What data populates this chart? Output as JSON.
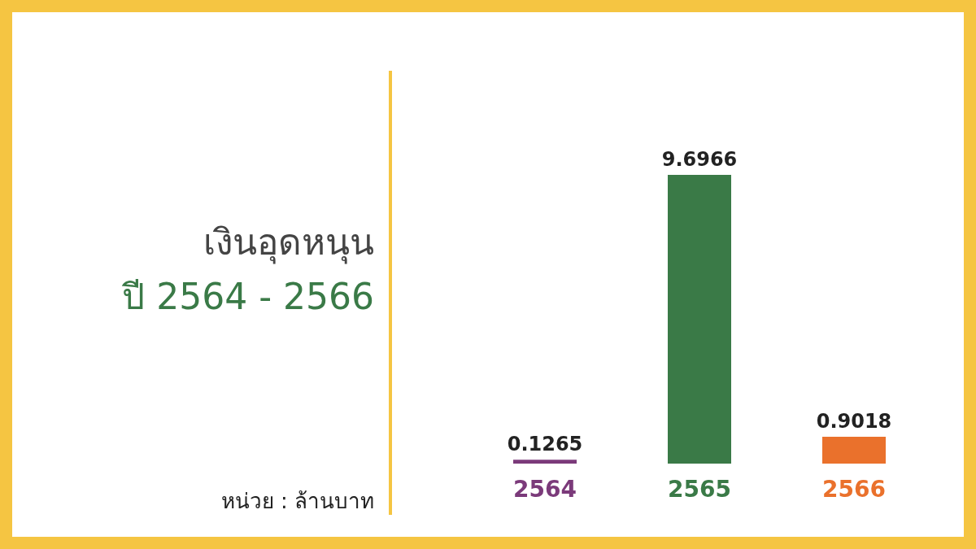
{
  "chart_data": {
    "type": "bar",
    "title": "เงินอุดหนุน",
    "subtitle": "ปี 2564 - 2566",
    "annotations": [
      "หน่วย : ล้านบาท"
    ],
    "categories": [
      "2564",
      "2565",
      "2566"
    ],
    "values": [
      0.1265,
      9.6966,
      0.9018
    ],
    "colors": [
      "#7b3a7a",
      "#3a7a47",
      "#ea712c"
    ],
    "data_labels": true
  }
}
